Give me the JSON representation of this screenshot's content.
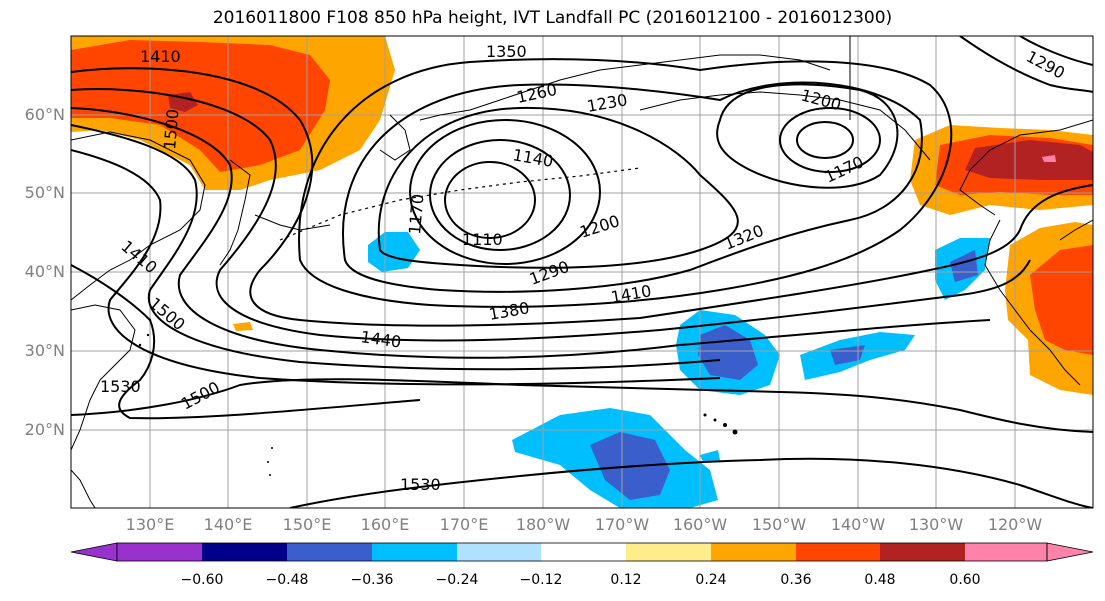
{
  "title": "2016011800 F108 850 hPa height, IVT Landfall PC (2016012100 - 2016012300)",
  "lat_labels": [
    "60°N",
    "50°N",
    "40°N",
    "30°N",
    "20°N"
  ],
  "lon_labels": [
    "130°E",
    "140°E",
    "150°E",
    "160°E",
    "170°E",
    "180°W",
    "170°W",
    "160°W",
    "150°W",
    "140°W",
    "130°W",
    "120°W"
  ],
  "contour_labels": [
    "1410",
    "1350",
    "1290",
    "1260",
    "1230",
    "1200",
    "1170",
    "1140",
    "1170",
    "1110",
    "1200",
    "1320",
    "1290",
    "1410",
    "1380",
    "1440",
    "1500",
    "1530",
    "1530",
    "1410",
    "1500",
    "1500"
  ],
  "colorbar": {
    "ticks": [
      "−0.60",
      "−0.48",
      "−0.36",
      "−0.24",
      "−0.12",
      "0.12",
      "0.24",
      "0.36",
      "0.48",
      "0.60"
    ],
    "colors": [
      "#9932cc",
      "#00008b",
      "#3a5fcd",
      "#00bfff",
      "#b0e2ff",
      "#ffffff",
      "#ffec8b",
      "#ffa500",
      "#ff4500",
      "#b22222",
      "#ff82ab"
    ]
  },
  "colors": {
    "pos1": "#ffa500",
    "pos2": "#ff4500",
    "pos3": "#b22222",
    "pos4": "#ff82ab",
    "neg1": "#00bfff",
    "neg2": "#3a5fcd",
    "grid": "#a0a0a0",
    "text_axis": "#808080"
  }
}
